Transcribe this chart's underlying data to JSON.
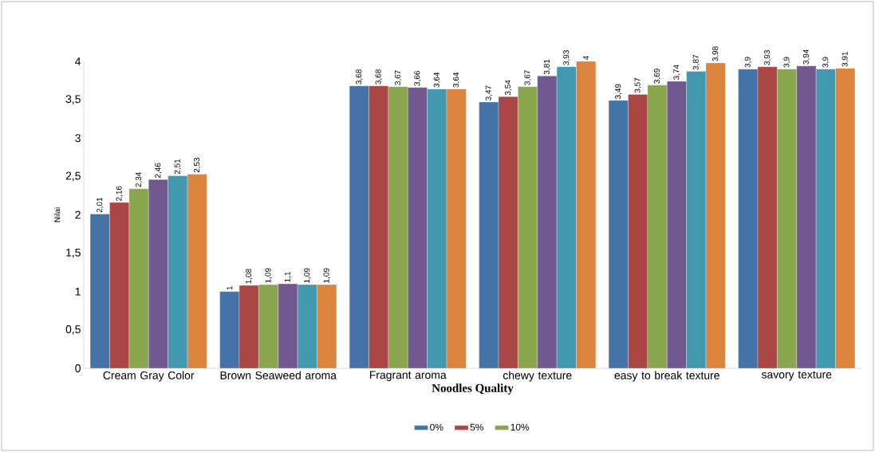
{
  "chart_data": {
    "type": "bar",
    "xlabel": "Noodles Quality",
    "ylabel": "Nilai",
    "categories": [
      "Cream Gray Color",
      "Brown Seaweed aroma",
      "Fragrant aroma",
      "chewy texture",
      "easy to break texture",
      "savory texture"
    ],
    "ylim": [
      0,
      4
    ],
    "yticks": [
      0,
      {
        "value": 0.5,
        "label": "0,5"
      },
      1,
      {
        "value": 1.5,
        "label": "1,5"
      },
      2,
      {
        "value": 2.5,
        "label": "2,5"
      },
      3,
      {
        "value": 3.5,
        "label": "3,5"
      },
      4
    ],
    "grid": false,
    "legend": "bottom",
    "series": [
      {
        "name": "0%",
        "color": "#4572a7",
        "values": [
          2.01,
          1,
          3.68,
          3.47,
          3.49,
          3.9
        ],
        "value_labels": [
          "2,01",
          "1",
          "3,68",
          "3,47",
          "3,49",
          "3,9"
        ]
      },
      {
        "name": "5%",
        "color": "#aa4643",
        "values": [
          2.16,
          1.08,
          3.68,
          3.54,
          3.57,
          3.93
        ],
        "value_labels": [
          "2,16",
          "1,08",
          "3,68",
          "3,54",
          "3,57",
          "3,93"
        ]
      },
      {
        "name": "10%",
        "color": "#89a54e",
        "values": [
          2.34,
          1.09,
          3.67,
          3.67,
          3.69,
          3.9
        ],
        "value_labels": [
          "2,34",
          "1,09",
          "3,67",
          "3,67",
          "3,69",
          "3,9"
        ]
      },
      {
        "color": "#71588f",
        "values": [
          2.46,
          1.1,
          3.66,
          3.81,
          3.74,
          3.94
        ],
        "value_labels": [
          "2,46",
          "1,1",
          "3,66",
          "3,81",
          "3,74",
          "3,94"
        ]
      },
      {
        "color": "#4198af",
        "values": [
          2.51,
          1.09,
          3.64,
          3.93,
          3.87,
          3.9
        ],
        "value_labels": [
          "2,51",
          "1,09",
          "3,64",
          "3,93",
          "3,87",
          "3,9"
        ]
      },
      {
        "color": "#db843d",
        "values": [
          2.53,
          1.09,
          3.64,
          4,
          3.98,
          3.91
        ],
        "value_labels": [
          "2,53",
          "1,09",
          "3,64",
          "4",
          "3,98",
          "3,91"
        ]
      }
    ]
  }
}
